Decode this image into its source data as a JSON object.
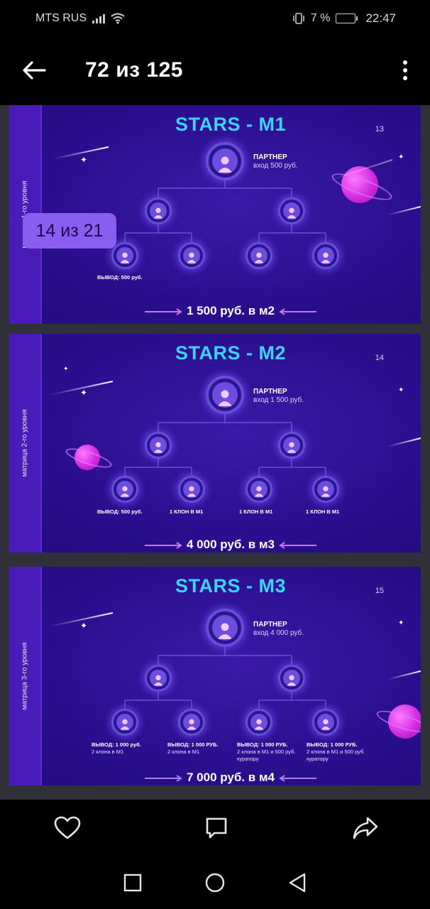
{
  "status_bar": {
    "carrier": "MTS RUS",
    "battery_pct": "7 %",
    "time": "22:47"
  },
  "header": {
    "title": "72 из 125"
  },
  "viewer": {
    "badge": "14 из 21",
    "slides": [
      {
        "title": "STARS - M1",
        "number": "13",
        "side_label": "матрица 1-го уровня",
        "partner_title": "ПАРТНЕР",
        "partner_sub": "вход 500 руб.",
        "leaf_labels": [
          {
            "main": "ВЫВОД: 500 руб.",
            "sub": ""
          },
          {
            "main": "",
            "sub": ""
          },
          {
            "main": "",
            "sub": ""
          },
          {
            "main": "",
            "sub": ""
          }
        ],
        "bottom": "1 500 руб. в м2"
      },
      {
        "title": "STARS - M2",
        "number": "14",
        "side_label": "матрица 2-го уровня",
        "partner_title": "ПАРТНЕР",
        "partner_sub": "вход 1 500 руб.",
        "leaf_labels": [
          {
            "main": "ВЫВОД: 500 руб.",
            "sub": ""
          },
          {
            "main": "1 КЛОН В М1",
            "sub": ""
          },
          {
            "main": "1 КЛОН В М1",
            "sub": ""
          },
          {
            "main": "1 КЛОН В М1",
            "sub": ""
          }
        ],
        "bottom": "4 000 руб. в м3"
      },
      {
        "title": "STARS - M3",
        "number": "15",
        "side_label": "матрица 3-го уровня",
        "partner_title": "ПАРТНЕР",
        "partner_sub": "вход 4 000 руб.",
        "leaf_labels": [
          {
            "main": "ВЫВОД: 1 000 руб.",
            "sub": "2 клона в М1"
          },
          {
            "main": "ВЫВОД: 1 000 РУБ.",
            "sub": "2 клона в М1"
          },
          {
            "main": "ВЫВОД: 1 000 РУБ.",
            "sub": "2 клона в М1 и 500 руб. куратору"
          },
          {
            "main": "ВЫВОД: 1 000 РУБ.",
            "sub": "2 клона в М1 и 500 руб. куратору"
          }
        ],
        "bottom": "7 000 руб. в м4"
      }
    ]
  },
  "actions": [
    "heart-icon",
    "comment-icon",
    "share-icon"
  ],
  "navigation": [
    "recents-icon",
    "home-icon",
    "back-nav-icon"
  ]
}
